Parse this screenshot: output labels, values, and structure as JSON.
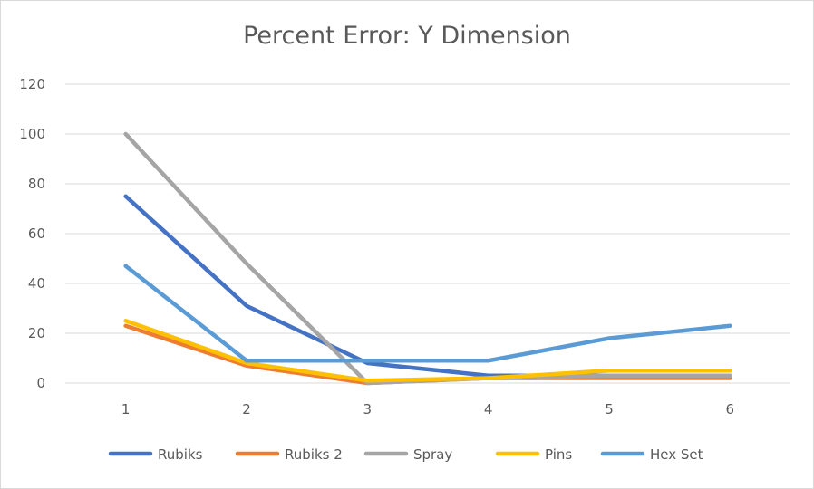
{
  "chart_data": {
    "type": "line",
    "title": "Percent Error: Y Dimension",
    "xlabel": "",
    "ylabel": "",
    "categories": [
      "1",
      "2",
      "3",
      "4",
      "5",
      "6"
    ],
    "ylim": [
      0,
      120
    ],
    "yticks": [
      "0",
      "20",
      "40",
      "60",
      "80",
      "100",
      "120"
    ],
    "grid": true,
    "legend": "bottom",
    "series": [
      {
        "name": "Rubiks",
        "color": "#4472C4",
        "values": [
          75,
          31,
          8,
          3,
          3,
          3
        ]
      },
      {
        "name": "Rubiks 2",
        "color": "#ED7D31",
        "values": [
          23,
          7,
          0,
          2,
          2,
          2
        ]
      },
      {
        "name": "Spray",
        "color": "#A5A5A5",
        "values": [
          100,
          48,
          0,
          2,
          3,
          3
        ]
      },
      {
        "name": "Pins",
        "color": "#FFC000",
        "values": [
          25,
          8,
          1,
          2,
          5,
          5
        ]
      },
      {
        "name": "Hex Set",
        "color": "#5B9BD5",
        "values": [
          47,
          9,
          9,
          9,
          18,
          23
        ]
      }
    ]
  }
}
